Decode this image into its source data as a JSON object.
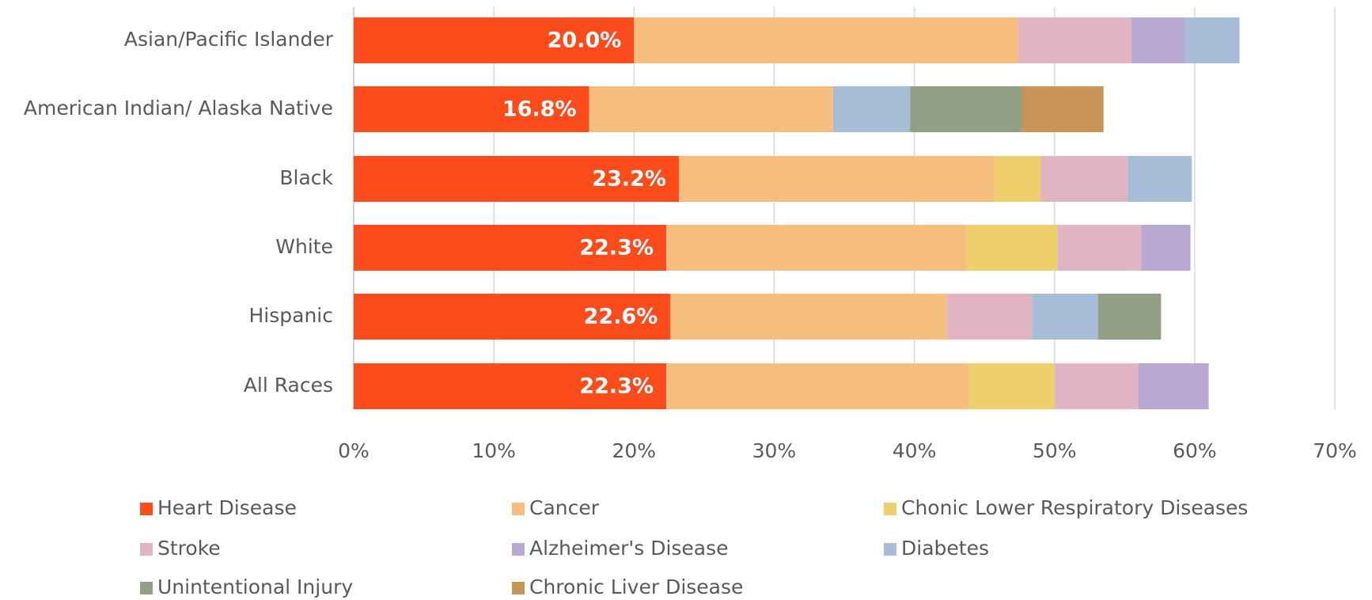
{
  "chart_data": {
    "type": "stacked_bar_horizontal",
    "categories": [
      "Asian/Pacific Islander",
      "American Indian/ Alaska Native",
      "Black",
      "White",
      "Hispanic",
      "All Races"
    ],
    "series": [
      {
        "name": "Heart Disease",
        "color": "#fc4c1c",
        "values": [
          20.0,
          16.8,
          23.2,
          22.3,
          22.6,
          22.3
        ],
        "value_labels": [
          "20.0%",
          "16.8%",
          "23.2%",
          "22.3%",
          "22.6%",
          "22.3%"
        ]
      },
      {
        "name": "Cancer",
        "color": "#f6be7e",
        "values": [
          27.4,
          17.4,
          22.5,
          21.4,
          19.7,
          21.6
        ]
      },
      {
        "name": "Chonic Lower Respiratory Diseases",
        "color": "#edcf6b",
        "values": [
          null,
          null,
          3.3,
          6.5,
          null,
          6.1
        ]
      },
      {
        "name": "Stroke",
        "color": "#e0b4c0",
        "values": [
          8.1,
          null,
          6.2,
          6.0,
          6.1,
          6.0
        ]
      },
      {
        "name": "Alzheimer's Disease",
        "color": "#b8a9d4",
        "values": [
          3.8,
          null,
          null,
          3.5,
          null,
          5.0
        ]
      },
      {
        "name": "Diabetes",
        "color": "#a7bcd6",
        "values": [
          3.9,
          5.5,
          4.6,
          null,
          4.7,
          null
        ]
      },
      {
        "name": "Unintentional Injury",
        "color": "#929f84",
        "values": [
          null,
          8.0,
          null,
          null,
          4.5,
          null
        ]
      },
      {
        "name": "Chronic Liver Disease",
        "color": "#c99456",
        "values": [
          null,
          5.8,
          null,
          null,
          null,
          null
        ]
      }
    ],
    "xlim": [
      0,
      70
    ],
    "xticks": [
      {
        "value": 0,
        "label": "0%"
      },
      {
        "value": 10,
        "label": "10%"
      },
      {
        "value": 20,
        "label": "20%"
      },
      {
        "value": 30,
        "label": "30%"
      },
      {
        "value": 40,
        "label": "40%"
      },
      {
        "value": 50,
        "label": "50%"
      },
      {
        "value": 60,
        "label": "60%"
      },
      {
        "value": 70,
        "label": "70%"
      }
    ],
    "grid": true,
    "legend": "bottom"
  }
}
